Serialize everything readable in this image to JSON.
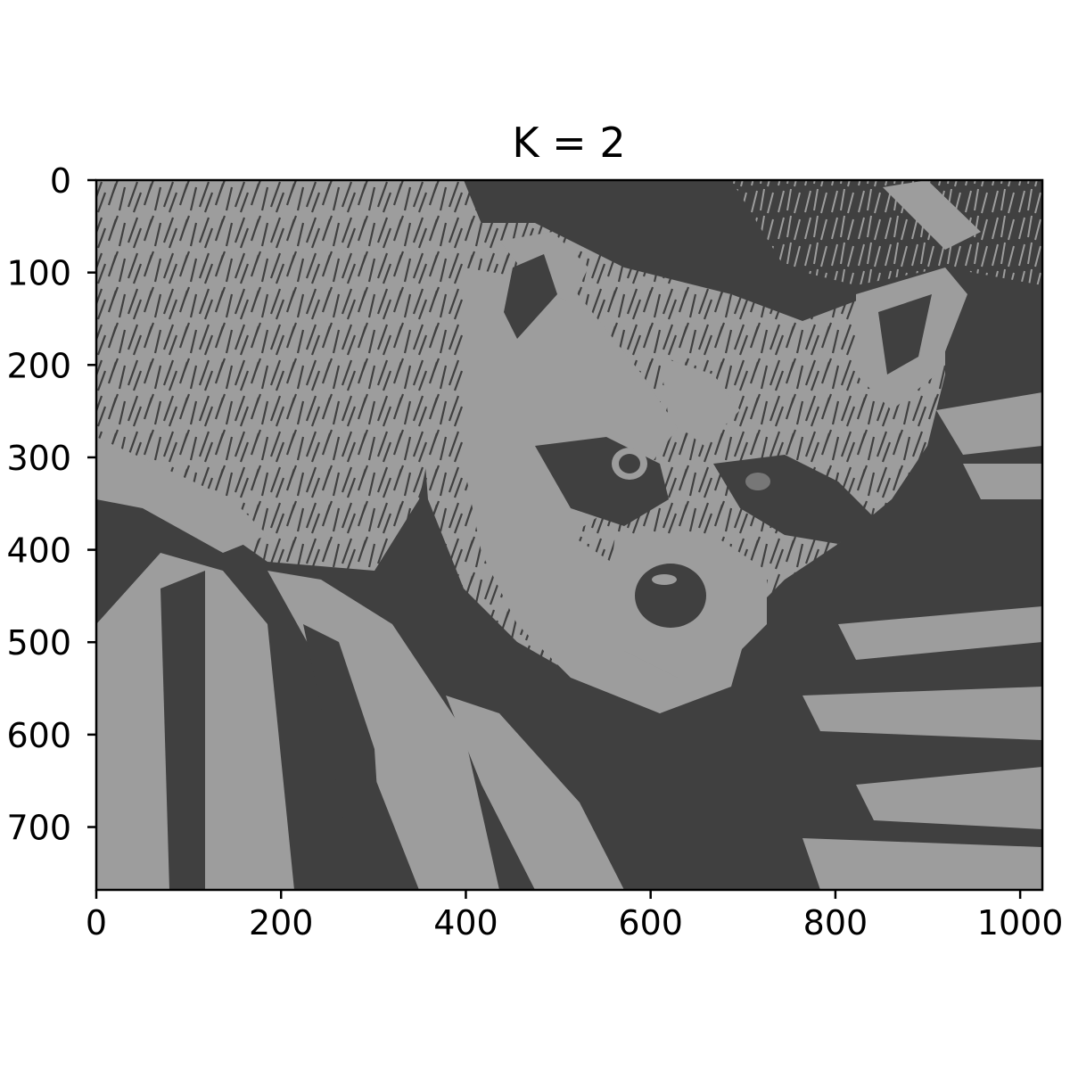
{
  "figure": {
    "title": "K = 2",
    "image_subject": "raccoon face among grass, quantized to 2 gray levels",
    "extent": {
      "width": 1024,
      "height": 768
    },
    "palette": {
      "dark": "#404040",
      "light": "#9d9d9d",
      "frame": "#000000",
      "background": "#ffffff"
    }
  },
  "axes": {
    "x": {
      "ticks": [
        0,
        200,
        400,
        600,
        800,
        1000
      ],
      "labels": [
        "0",
        "200",
        "400",
        "600",
        "800",
        "1000"
      ],
      "lim": [
        0,
        1024
      ]
    },
    "y": {
      "ticks": [
        0,
        100,
        200,
        300,
        400,
        500,
        600,
        700
      ],
      "labels": [
        "0",
        "100",
        "200",
        "300",
        "400",
        "500",
        "600",
        "700"
      ],
      "lim": [
        0,
        768
      ],
      "inverted": true
    }
  }
}
